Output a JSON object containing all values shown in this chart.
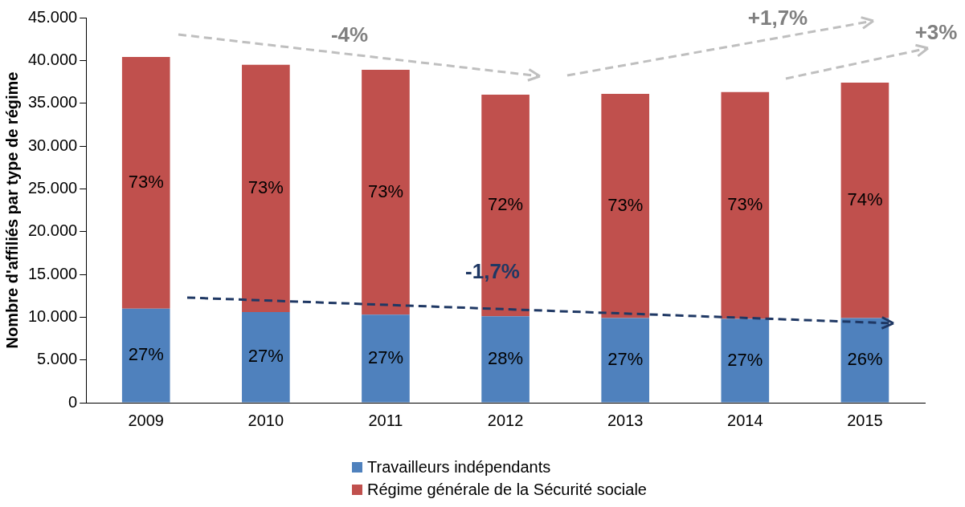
{
  "chart_data": {
    "type": "bar",
    "stacked": true,
    "ylabel": "Nombre d'affiliés par type de régime",
    "categories": [
      "2009",
      "2010",
      "2011",
      "2012",
      "2013",
      "2014",
      "2015"
    ],
    "series": [
      {
        "name": "Travailleurs indépendants",
        "color": "#4f81bd",
        "values": [
          11000,
          10600,
          10300,
          10100,
          9900,
          9800,
          9900
        ]
      },
      {
        "name": "Régime générale de la Sécurité sociale",
        "color": "#c0504d",
        "values": [
          29400,
          28900,
          28600,
          25900,
          26200,
          26500,
          27500
        ]
      }
    ],
    "ylim": [
      0,
      45000
    ],
    "yticks": [
      {
        "value": 0,
        "label": "0"
      },
      {
        "value": 5000,
        "label": "5.000"
      },
      {
        "value": 10000,
        "label": "10.000"
      },
      {
        "value": 15000,
        "label": "15.000"
      },
      {
        "value": 20000,
        "label": "20.000"
      },
      {
        "value": 25000,
        "label": "25.000"
      },
      {
        "value": 30000,
        "label": "30.000"
      },
      {
        "value": 35000,
        "label": "35.000"
      },
      {
        "value": 40000,
        "label": "40.000"
      },
      {
        "value": 45000,
        "label": "45.000"
      }
    ],
    "grid": false,
    "legend": "bottom",
    "annotations": [
      "-4%",
      "+1,7%",
      "+3%",
      "-1,7%",
      "27%",
      "27%",
      "27%",
      "28%",
      "27%",
      "27%",
      "26%",
      "73%",
      "73%",
      "73%",
      "72%",
      "73%",
      "73%",
      "74%"
    ]
  }
}
